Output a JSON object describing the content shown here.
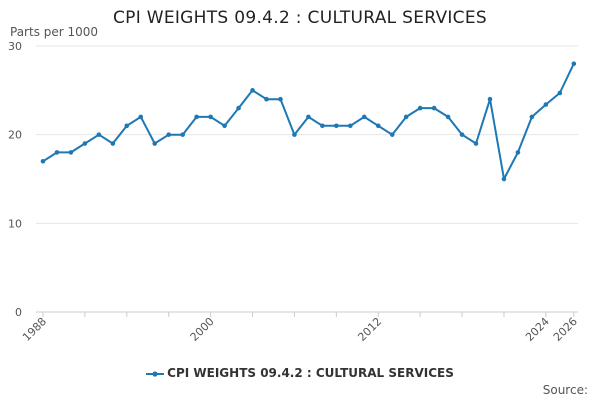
{
  "chart_data": {
    "type": "line",
    "title": "CPI WEIGHTS 09.4.2 : CULTURAL SERVICES",
    "ylabel": "Parts per 1000",
    "xlabel": "",
    "ylim": [
      0,
      30
    ],
    "yticks": [
      0,
      10,
      20,
      30
    ],
    "xlim": [
      1987.5,
      2026.3
    ],
    "xtick_labels": [
      "1988",
      "2000",
      "2012",
      "2024",
      "2026"
    ],
    "xtick_minor": [
      1988,
      1991,
      1994,
      1997,
      2000,
      2003,
      2006,
      2009,
      2012,
      2015,
      2018,
      2021,
      2024,
      2026
    ],
    "grid": "horizontal",
    "legend_position": "bottom",
    "series": [
      {
        "name": "CPI WEIGHTS 09.4.2 : CULTURAL SERVICES",
        "color": "#1f77b4",
        "x": [
          1988,
          1989,
          1990,
          1991,
          1992,
          1993,
          1994,
          1995,
          1996,
          1997,
          1998,
          1999,
          2000,
          2001,
          2002,
          2003,
          2004,
          2005,
          2006,
          2007,
          2008,
          2009,
          2010,
          2011,
          2012,
          2013,
          2014,
          2015,
          2016,
          2017,
          2018,
          2019,
          2020,
          2021,
          2022,
          2023,
          2024,
          2025,
          2026
        ],
        "values": [
          17,
          18,
          18,
          19,
          20,
          19,
          21,
          22,
          19,
          20,
          20,
          22,
          22,
          21,
          23,
          25,
          24,
          24,
          20,
          22,
          21,
          21,
          21,
          22,
          21,
          20,
          22,
          23,
          23,
          22,
          20,
          19,
          24,
          15,
          18,
          22,
          23.4,
          24.7,
          28
        ]
      }
    ]
  },
  "legend": {
    "label": "CPI WEIGHTS 09.4.2 : CULTURAL SERVICES"
  },
  "source_label": "Source:"
}
